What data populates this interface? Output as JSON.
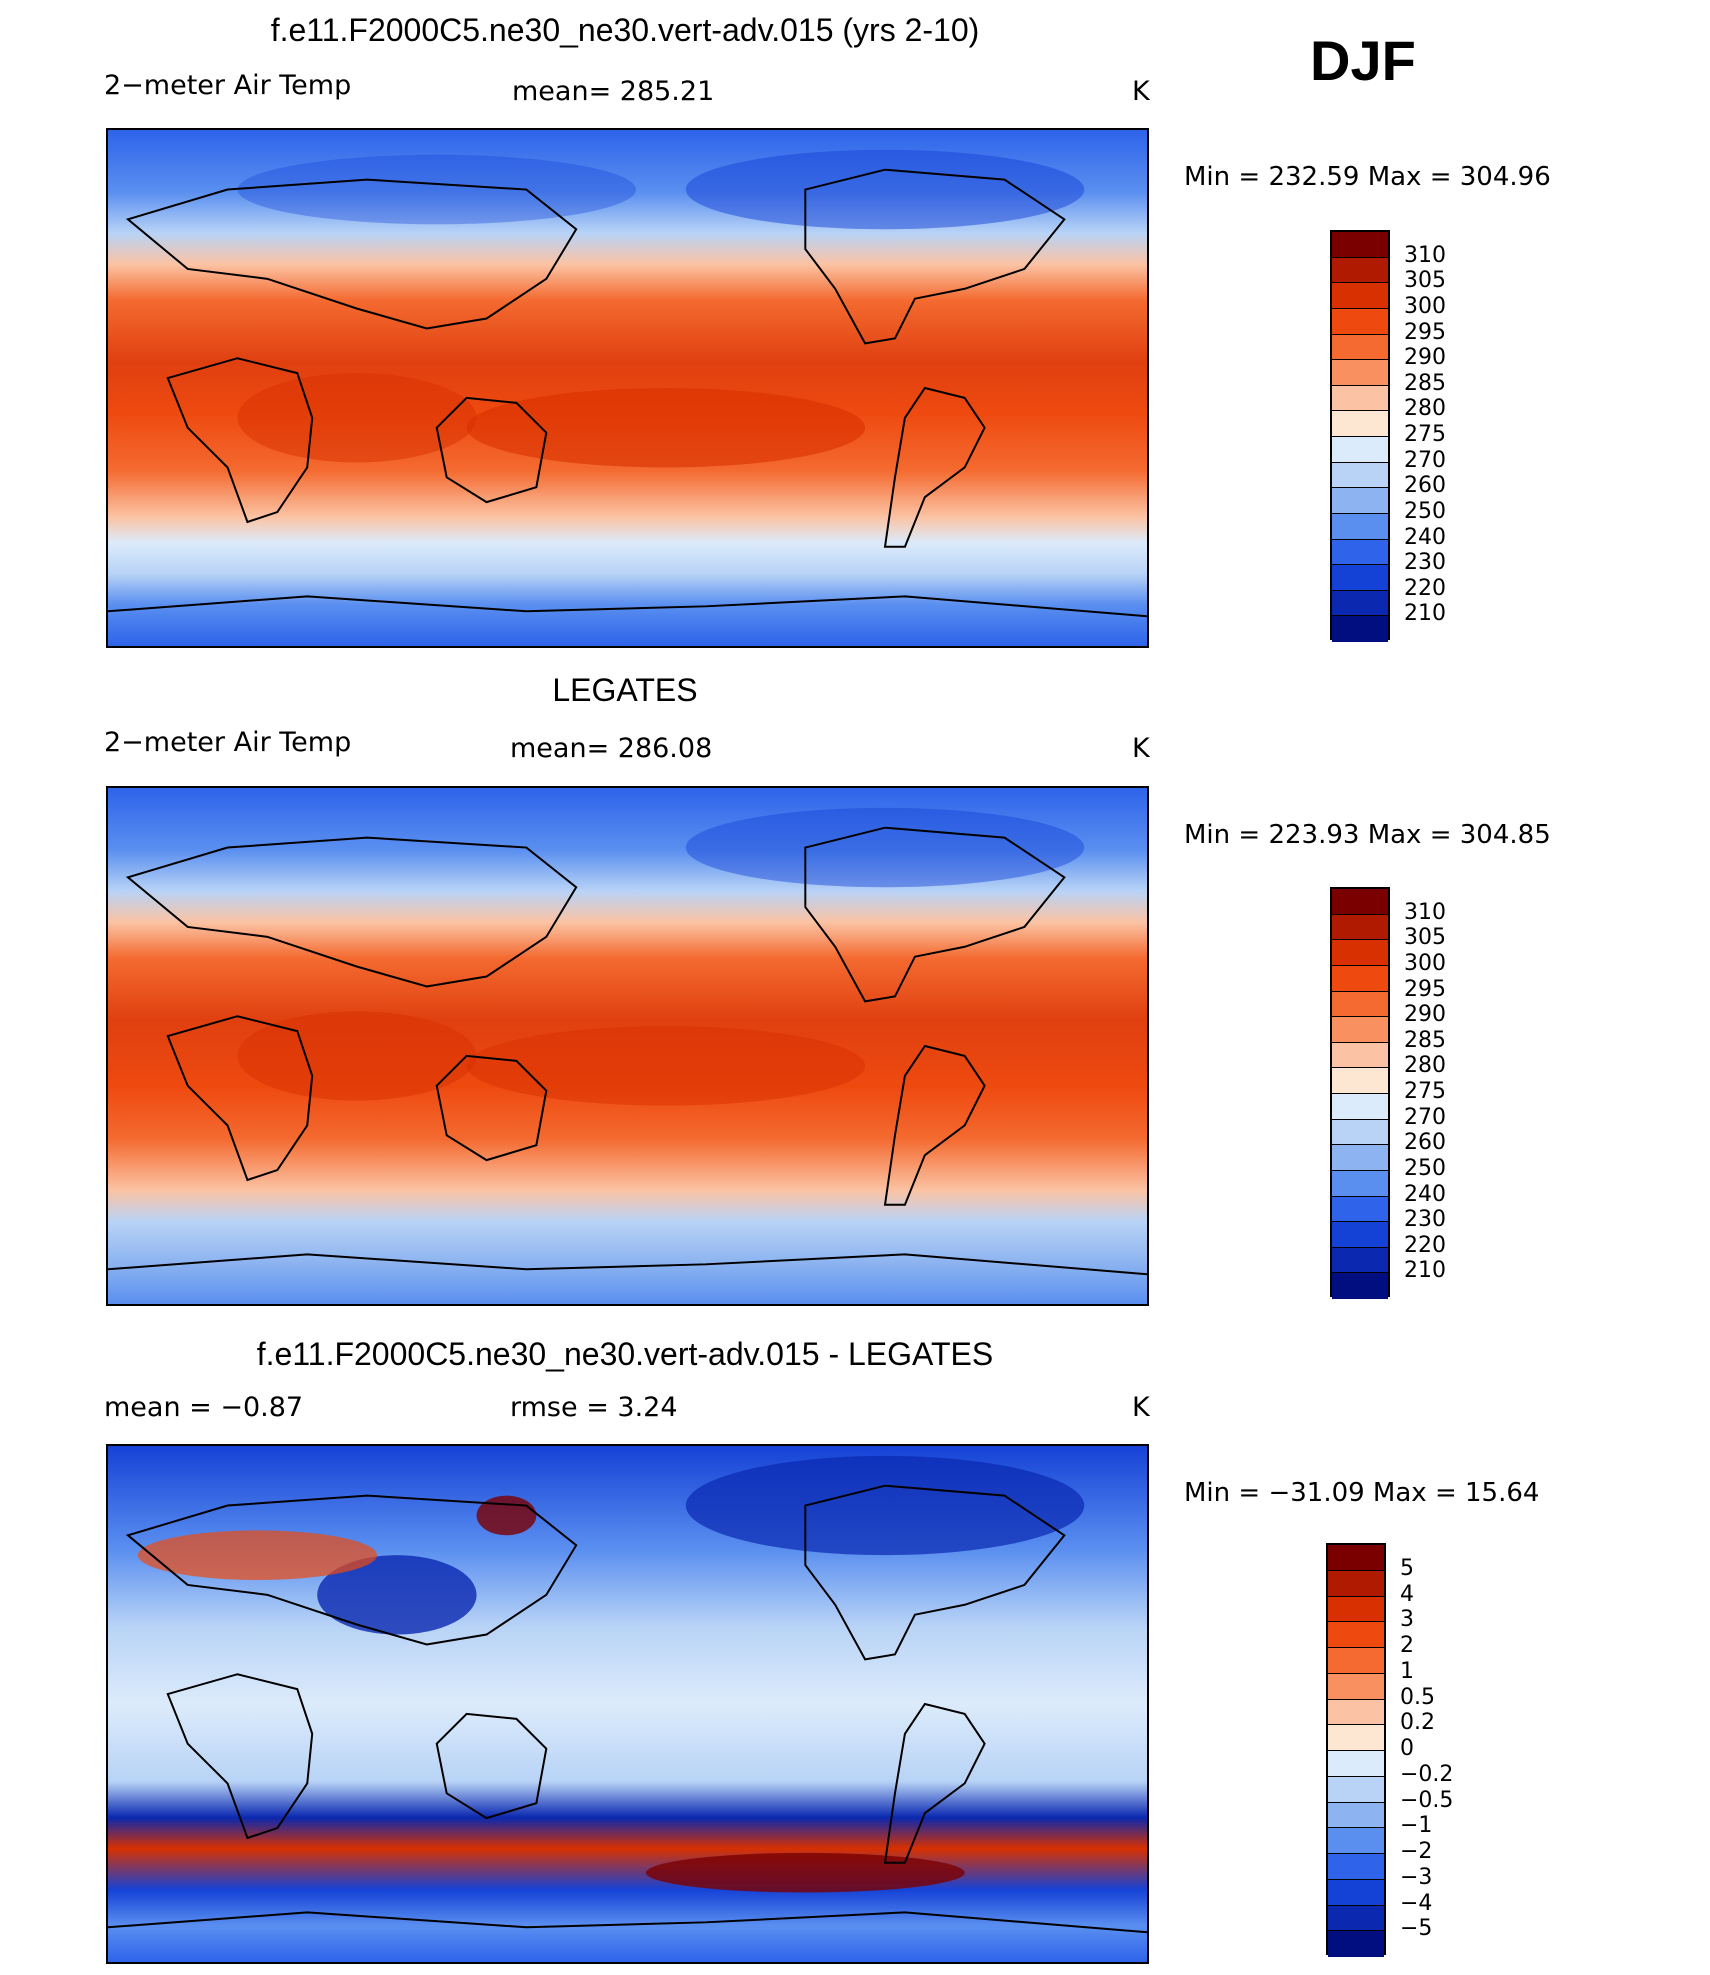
{
  "season": "DJF",
  "panels": [
    {
      "title": "f.e11.F2000C5.ne30_ne30.vert-adv.015 (yrs 2-10)",
      "left_label": "2−meter Air Temp",
      "mid_label": "mean=  285.21",
      "units": "K",
      "stats": "Min  =  232.59  Max  =  304.96",
      "colorbar": {
        "ticks": [
          "310",
          "305",
          "300",
          "295",
          "290",
          "285",
          "280",
          "275",
          "270",
          "260",
          "250",
          "240",
          "230",
          "220",
          "210"
        ],
        "colors": [
          "#7a0000",
          "#b01a00",
          "#d83000",
          "#ee4a10",
          "#f46a30",
          "#f89060",
          "#fbc3a4",
          "#fde6d2",
          "#dcebfb",
          "#b8d3f6",
          "#8db4f0",
          "#5a8ff0",
          "#2e63ea",
          "#1542d6",
          "#0a28b0",
          "#000e80"
        ]
      }
    },
    {
      "title": "LEGATES",
      "left_label": "2−meter Air Temp",
      "mid_label": "mean=  286.08",
      "units": "K",
      "stats": "Min  =  223.93  Max  =  304.85",
      "colorbar": {
        "ticks": [
          "310",
          "305",
          "300",
          "295",
          "290",
          "285",
          "280",
          "275",
          "270",
          "260",
          "250",
          "240",
          "230",
          "220",
          "210"
        ],
        "colors": [
          "#7a0000",
          "#b01a00",
          "#d83000",
          "#ee4a10",
          "#f46a30",
          "#f89060",
          "#fbc3a4",
          "#fde6d2",
          "#dcebfb",
          "#b8d3f6",
          "#8db4f0",
          "#5a8ff0",
          "#2e63ea",
          "#1542d6",
          "#0a28b0",
          "#000e80"
        ]
      }
    },
    {
      "title": "f.e11.F2000C5.ne30_ne30.vert-adv.015 - LEGATES",
      "left_label": "mean =    −0.87",
      "mid_label": "rmse =     3.24",
      "units": "K",
      "stats": "Min  =  −31.09  Max  =    15.64",
      "colorbar": {
        "ticks": [
          "5",
          "4",
          "3",
          "2",
          "1",
          "0.5",
          "0.2",
          "0",
          "−0.2",
          "−0.5",
          "−1",
          "−2",
          "−3",
          "−4",
          "−5"
        ],
        "colors": [
          "#7a0000",
          "#b01a00",
          "#d83000",
          "#ee4a10",
          "#f46a30",
          "#f89060",
          "#fbc3a4",
          "#fde6d2",
          "#dcebfb",
          "#b8d3f6",
          "#8db4f0",
          "#5a8ff0",
          "#2e63ea",
          "#1542d6",
          "#0a28b0",
          "#000e80"
        ]
      }
    }
  ]
}
